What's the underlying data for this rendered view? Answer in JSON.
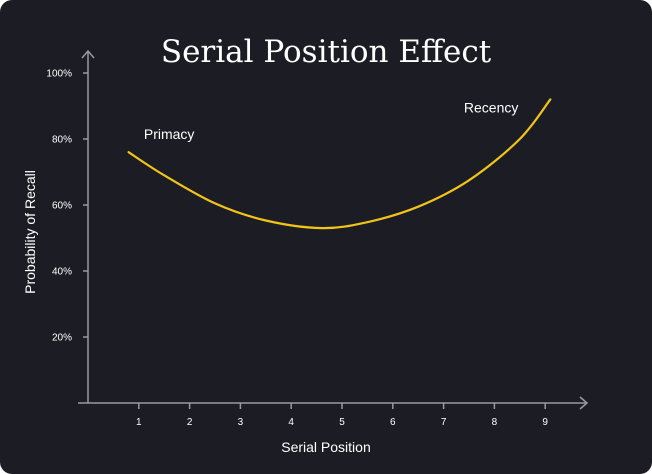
{
  "chart_data": {
    "type": "line",
    "title": "Serial Position Effect",
    "xlabel": "Serial Position",
    "ylabel": "Probability of Recall",
    "x_ticks": [
      "1",
      "2",
      "3",
      "4",
      "5",
      "6",
      "7",
      "8",
      "9"
    ],
    "y_ticks": [
      "20%",
      "40%",
      "60%",
      "80%",
      "100%"
    ],
    "xlim": [
      0,
      9.8
    ],
    "ylim": [
      0,
      100
    ],
    "grid": false,
    "line_color": "#f2c419",
    "axis_color": "#9a9aa4",
    "series": [
      {
        "x": [
          0.8,
          1.5,
          2.5,
          3.5,
          4.6,
          5.5,
          6.5,
          7.5,
          8.5,
          9.1
        ],
        "y": [
          76,
          69,
          60.5,
          55.3,
          53,
          54.8,
          59.5,
          67.5,
          80,
          92
        ]
      }
    ],
    "annotations": [
      {
        "text": "Primacy",
        "x": 1.1,
        "y": 80
      },
      {
        "text": "Recency",
        "x": 7.4,
        "y": 88
      }
    ]
  }
}
